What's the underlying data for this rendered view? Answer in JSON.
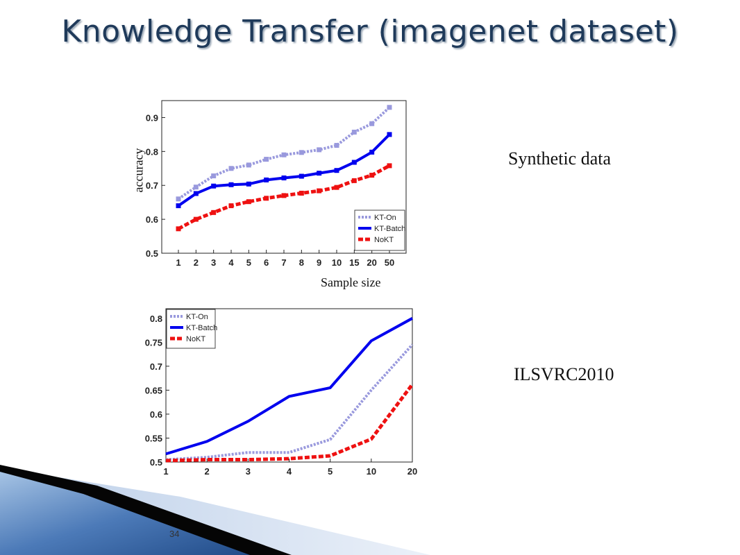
{
  "slide": {
    "title": "Knowledge Transfer (imagenet dataset)",
    "page_number": "34",
    "label_synthetic": "Synthetic data",
    "label_ilsvrc": "ILSVRC2010"
  },
  "chart_data": [
    {
      "type": "line",
      "categories": [
        "1",
        "2",
        "3",
        "4",
        "5",
        "6",
        "7",
        "8",
        "9",
        "10",
        "15",
        "20",
        "50"
      ],
      "ylabel": "accuracy",
      "xlabel": "Sample size",
      "ylim": [
        0.5,
        0.95
      ],
      "yticks": [
        "0.5",
        "0.6",
        "0.7",
        "0.8",
        "0.9"
      ],
      "legend_position": "bottom-right",
      "series": [
        {
          "name": "KT-On",
          "color": "#9999dd",
          "values": [
            0.66,
            0.695,
            0.728,
            0.75,
            0.76,
            0.777,
            0.79,
            0.797,
            0.805,
            0.818,
            0.857,
            0.882,
            0.93
          ]
        },
        {
          "name": "KT-Batch",
          "color": "#0000ee",
          "values": [
            0.64,
            0.676,
            0.698,
            0.702,
            0.704,
            0.716,
            0.722,
            0.727,
            0.736,
            0.744,
            0.768,
            0.798,
            0.85
          ]
        },
        {
          "name": "NoKT",
          "color": "#ee1111",
          "values": [
            0.572,
            0.6,
            0.62,
            0.64,
            0.652,
            0.662,
            0.67,
            0.677,
            0.684,
            0.694,
            0.714,
            0.73,
            0.758
          ]
        }
      ]
    },
    {
      "type": "line",
      "categories": [
        "1",
        "2",
        "3",
        "4",
        "5",
        "10",
        "20"
      ],
      "ylim": [
        0.5,
        0.82
      ],
      "yticks": [
        "0.5",
        "0.55",
        "0.6",
        "0.65",
        "0.7",
        "0.75",
        "0.8"
      ],
      "legend_position": "top-left",
      "series": [
        {
          "name": "KT-On",
          "color": "#9999dd",
          "values": [
            0.505,
            0.51,
            0.52,
            0.52,
            0.547,
            0.65,
            0.745
          ]
        },
        {
          "name": "KT-Batch",
          "color": "#0000ee",
          "values": [
            0.517,
            0.543,
            0.585,
            0.637,
            0.655,
            0.753,
            0.8
          ]
        },
        {
          "name": "NoKT",
          "color": "#ee1111",
          "values": [
            0.503,
            0.505,
            0.505,
            0.507,
            0.513,
            0.548,
            0.662
          ]
        }
      ]
    }
  ]
}
